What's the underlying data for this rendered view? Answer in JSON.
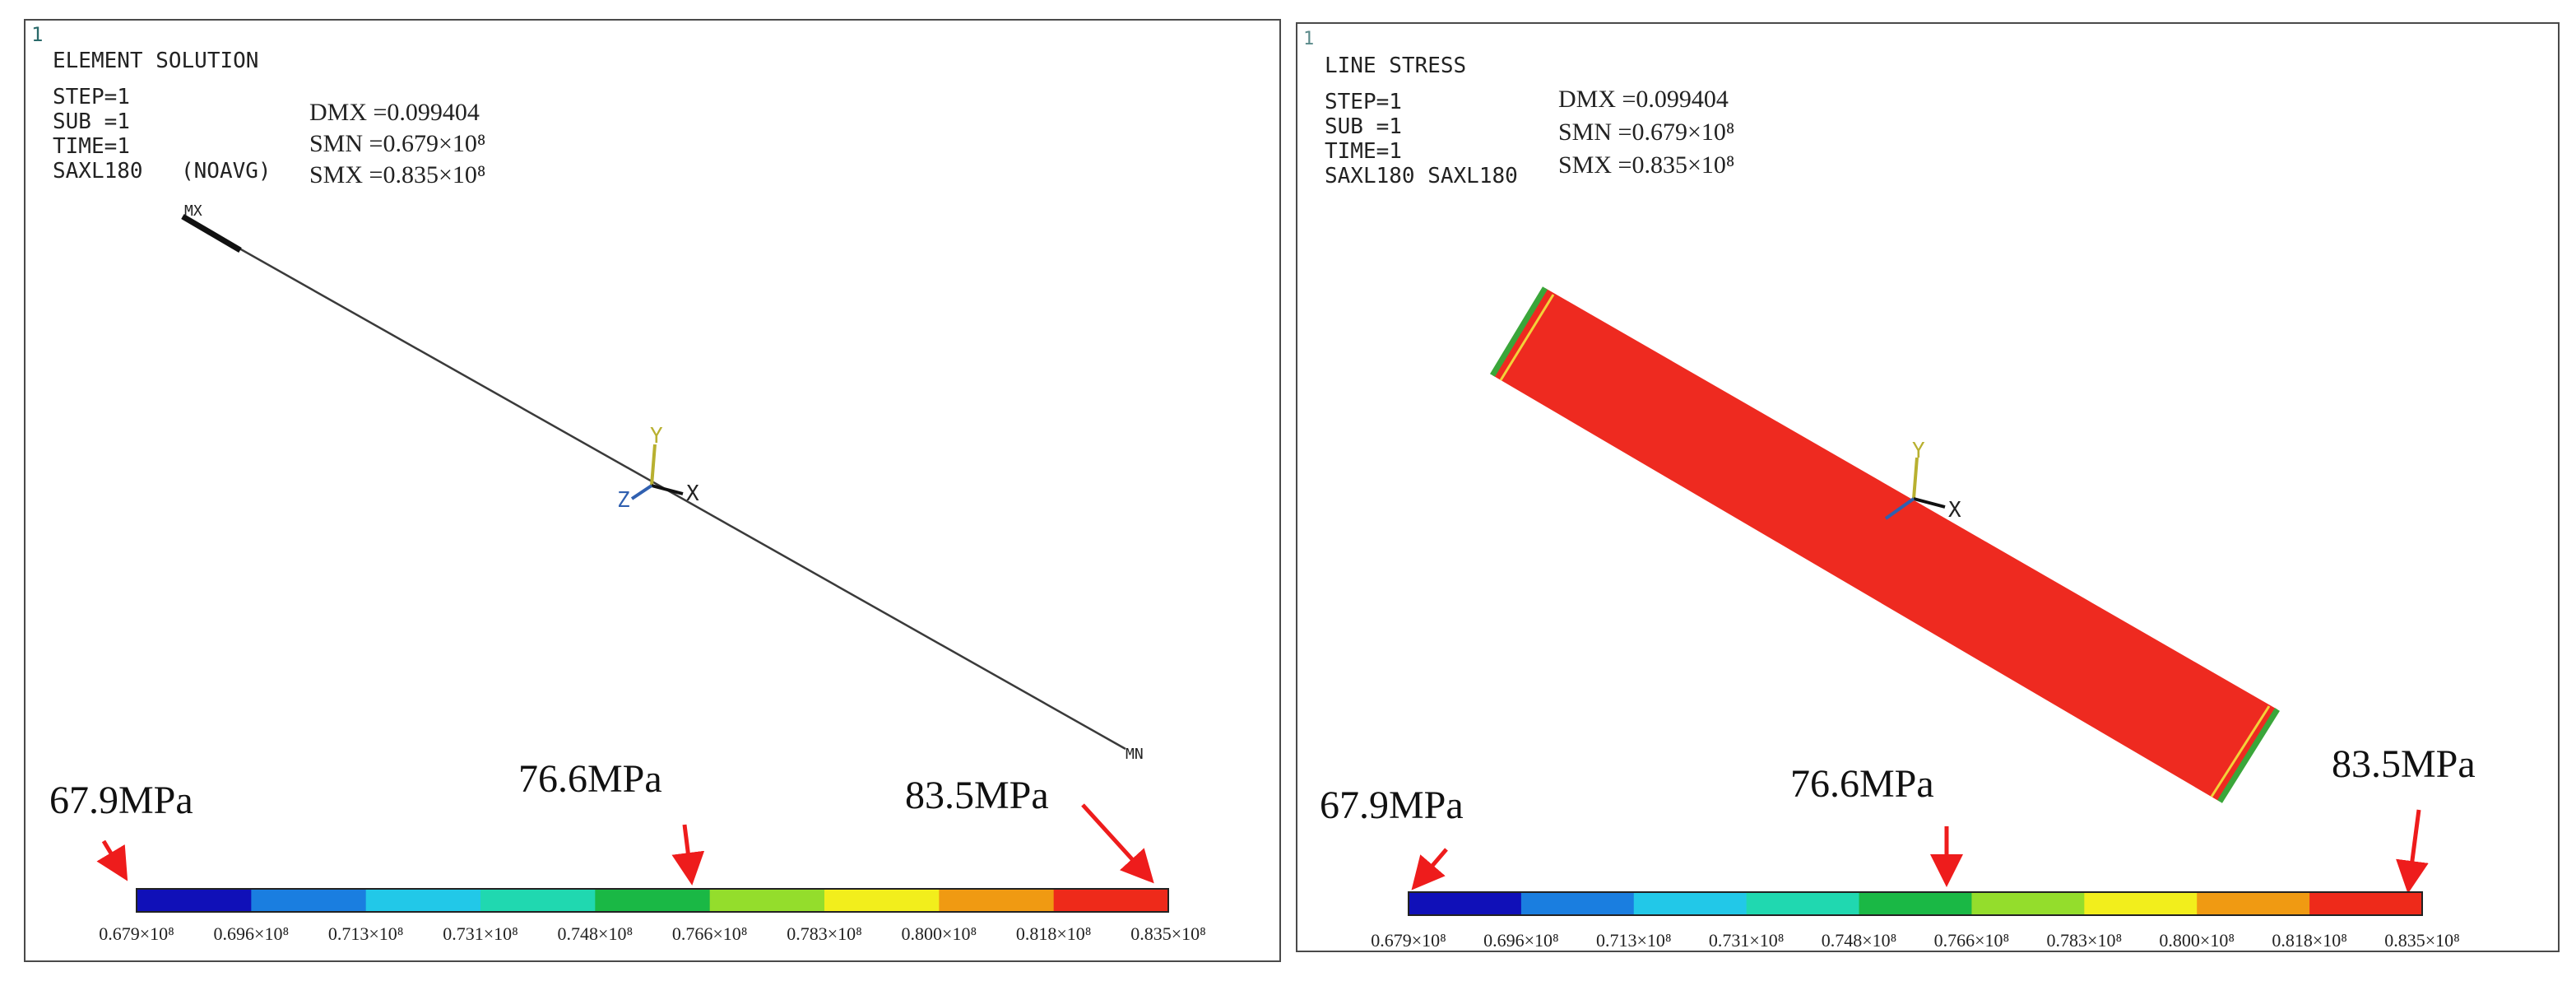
{
  "left_panel": {
    "window_number": "1",
    "title": "ELEMENT SOLUTION",
    "step": "STEP=1",
    "sub": "SUB =1",
    "time": "TIME=1",
    "element_type": "SAXL180",
    "avg_mode": "(NOAVG)",
    "dmx": "DMX =0.099404",
    "smn": "SMN =0.679×10⁸",
    "smx": "SMX =0.835×10⁸",
    "max_label": "MX",
    "min_label": "MN",
    "axis_y": "Y",
    "axis_x": "X",
    "axis_z": "Z",
    "callout_min": "67.9MPa",
    "callout_mid": "76.6MPa",
    "callout_max": "83.5MPa"
  },
  "right_panel": {
    "window_number": "1",
    "title": "LINE STRESS",
    "step": "STEP=1",
    "sub": "SUB =1",
    "time": "TIME=1",
    "element_type": "SAXL180 SAXL180",
    "dmx": "DMX =0.099404",
    "smn": "SMN =0.679×10⁸",
    "smx": "SMX =0.835×10⁸",
    "axis_y": "Y",
    "axis_x": "X",
    "callout_min": "67.9MPa",
    "callout_mid": "76.6MPa",
    "callout_max": "83.5MPa"
  },
  "legend": {
    "colors": [
      "#1010b8",
      "#1a7ee0",
      "#22c8e8",
      "#20d8b0",
      "#1ab845",
      "#94dd2c",
      "#f2ee1c",
      "#f09a12",
      "#ee2a1a"
    ],
    "labels": [
      "0.679×10⁸",
      "0.696×10⁸",
      "0.713×10⁸",
      "0.731×10⁸",
      "0.748×10⁸",
      "0.766×10⁸",
      "0.783×10⁸",
      "0.800×10⁸",
      "0.818×10⁸",
      "0.835×10⁸"
    ]
  },
  "colors": {
    "frame": "#4a4a4a",
    "arrow": "#ee1c1c",
    "beam_fill": "#ee2a20",
    "beam_edge_green": "#3aa63a",
    "beam_edge_yellow": "#f2d23a",
    "axis_y": "#b8b030",
    "axis_z": "#3060b0"
  }
}
